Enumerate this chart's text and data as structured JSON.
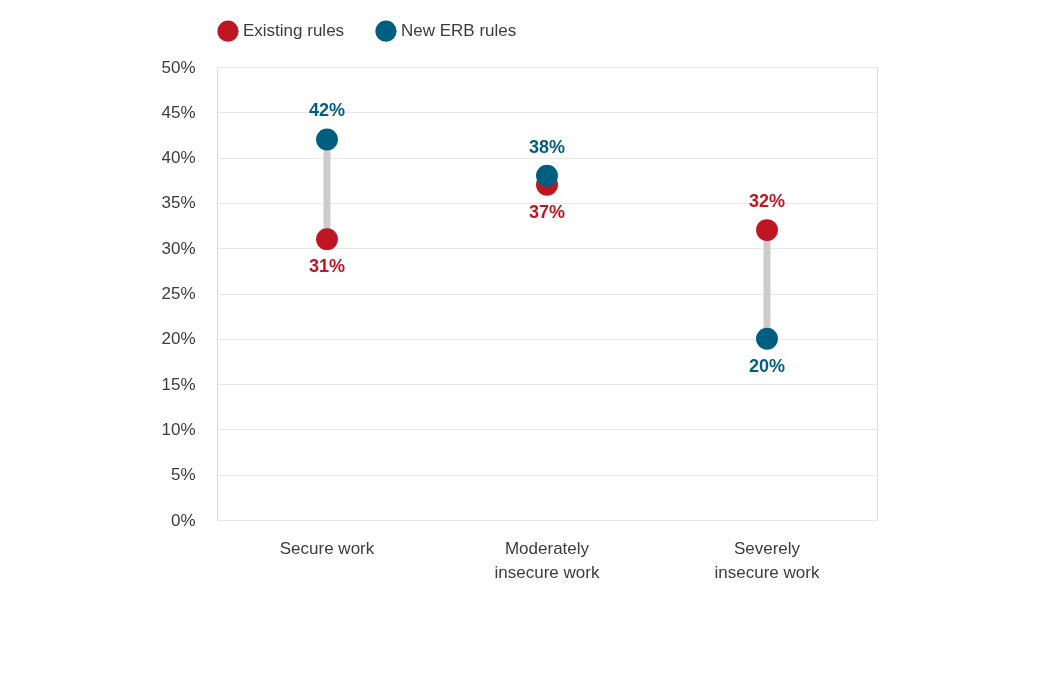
{
  "chart_data": {
    "type": "scatter",
    "categories": [
      "Secure work",
      "Moderately insecure work",
      "Severely insecure work"
    ],
    "series": [
      {
        "name": "Existing rules",
        "color": "#be1622",
        "values": [
          31,
          37,
          32
        ]
      },
      {
        "name": "New ERB rules",
        "color": "#005f7f",
        "values": [
          42,
          38,
          20
        ]
      }
    ],
    "ylim": [
      0,
      50
    ],
    "yticks": [
      {
        "value": 0,
        "label": "0%"
      },
      {
        "value": 5,
        "label": "5%"
      },
      {
        "value": 10,
        "label": "10%"
      },
      {
        "value": 15,
        "label": "15%"
      },
      {
        "value": 20,
        "label": "20%"
      },
      {
        "value": 25,
        "label": "25%"
      },
      {
        "value": 30,
        "label": "30%"
      },
      {
        "value": 35,
        "label": "35%"
      },
      {
        "value": 40,
        "label": "40%"
      },
      {
        "value": 45,
        "label": "45%"
      },
      {
        "value": 50,
        "label": "50%"
      }
    ],
    "value_labels": [
      [
        "31%",
        "37%",
        "32%"
      ],
      [
        "42%",
        "38%",
        "20%"
      ]
    ],
    "grid": "y",
    "legend": "top",
    "marker": "circle"
  }
}
